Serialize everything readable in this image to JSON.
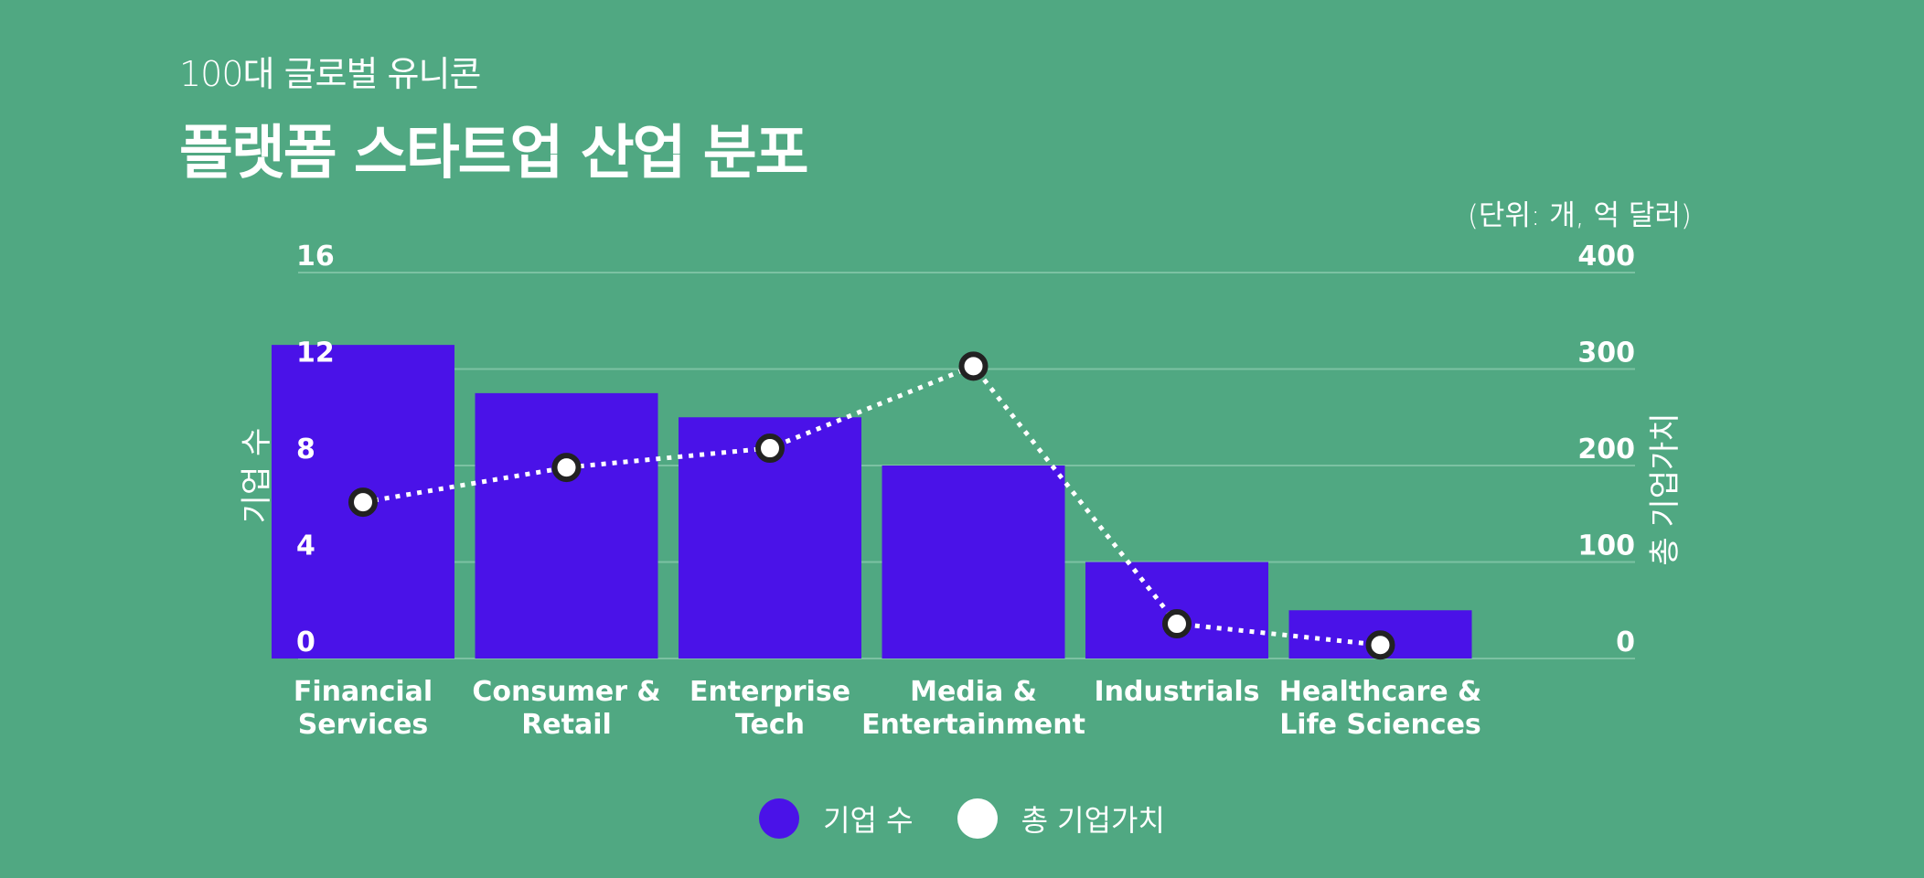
{
  "header": {
    "subtitle": "100대 글로벌 유니콘",
    "title": "플랫폼 스타트업 산업 분포",
    "unit": "(단위: 개, 억 달러)"
  },
  "colors": {
    "background": "#50a882",
    "bar": "#4a12e8",
    "line": "#ffffff",
    "grid": "#7cc2a3",
    "marker_stroke": "#222222"
  },
  "chart_data": {
    "type": "bar",
    "categories": [
      [
        "Financial",
        "Services"
      ],
      [
        "Consumer &",
        "Retail"
      ],
      [
        "Enterprise",
        "Tech"
      ],
      [
        "Media &",
        "Entertainment"
      ],
      [
        "Industrials"
      ],
      [
        "Healthcare &",
        "Life Sciences"
      ]
    ],
    "series": [
      {
        "name": "기업 수",
        "type": "bar",
        "axis": "left",
        "values": [
          13,
          11,
          10,
          8,
          4,
          2
        ]
      },
      {
        "name": "총 기업가치",
        "type": "line",
        "axis": "right",
        "values": [
          162,
          198,
          218,
          303,
          36,
          14
        ]
      }
    ],
    "ylabel": "기업 수",
    "y2label": "총 기업가치",
    "ylim": [
      0,
      16
    ],
    "y2lim": [
      0,
      400
    ],
    "yticks": [
      0,
      4,
      8,
      12,
      16
    ],
    "y2ticks": [
      0,
      100,
      200,
      300,
      400
    ],
    "grid": true,
    "legend": "bottom-center"
  }
}
